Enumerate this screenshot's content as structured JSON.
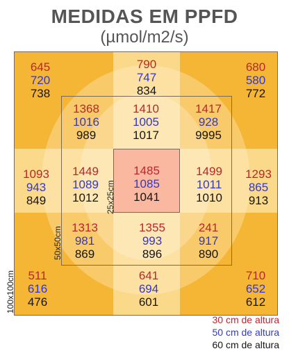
{
  "title": "MEDIDAS EM PPFD",
  "unit": "(µmol/m2/s)",
  "frame_labels": {
    "outer": "100x100cm",
    "mid": "50x50cm",
    "inner": "25x25cm"
  },
  "legend": [
    {
      "text": "30 cm de altura",
      "color": "#b8272d"
    },
    {
      "text": "50 cm de altura",
      "color": "#3438c4"
    },
    {
      "text": "60 cm de altura",
      "color": "#151515"
    }
  ],
  "colors": {
    "corner": "#f5b535",
    "edge_mid": "#fad98a",
    "center": "#fbb8a0",
    "glow": "#fff0cf",
    "height_30cm": "#b8272d",
    "height_50cm": "#3438c4",
    "height_60cm": "#151515"
  },
  "measurements": {
    "outer_top_left": [
      "645",
      "720",
      "738"
    ],
    "outer_top": [
      "790",
      "747",
      "834"
    ],
    "outer_top_right": [
      "680",
      "580",
      "772"
    ],
    "outer_left": [
      "1093",
      "943",
      "849"
    ],
    "outer_right": [
      "1293",
      "865",
      "913"
    ],
    "outer_bottom_left": [
      "511",
      "616",
      "476"
    ],
    "outer_bottom": [
      "641",
      "694",
      "601"
    ],
    "outer_bottom_right": [
      "710",
      "652",
      "612"
    ],
    "mid_top_left": [
      "1368",
      "1016",
      "989"
    ],
    "mid_top": [
      "1410",
      "1005",
      "1017"
    ],
    "mid_top_right": [
      "1417",
      "928",
      "9995"
    ],
    "mid_left": [
      "1449",
      "1089",
      "1012"
    ],
    "mid_right": [
      "1499",
      "1011",
      "1010"
    ],
    "mid_bottom_left": [
      "1313",
      "981",
      "869"
    ],
    "mid_bottom": [
      "1355",
      "993",
      "896"
    ],
    "mid_bottom_right": [
      "241",
      "917",
      "890"
    ],
    "center": [
      "1485",
      "1085",
      "1041"
    ]
  }
}
